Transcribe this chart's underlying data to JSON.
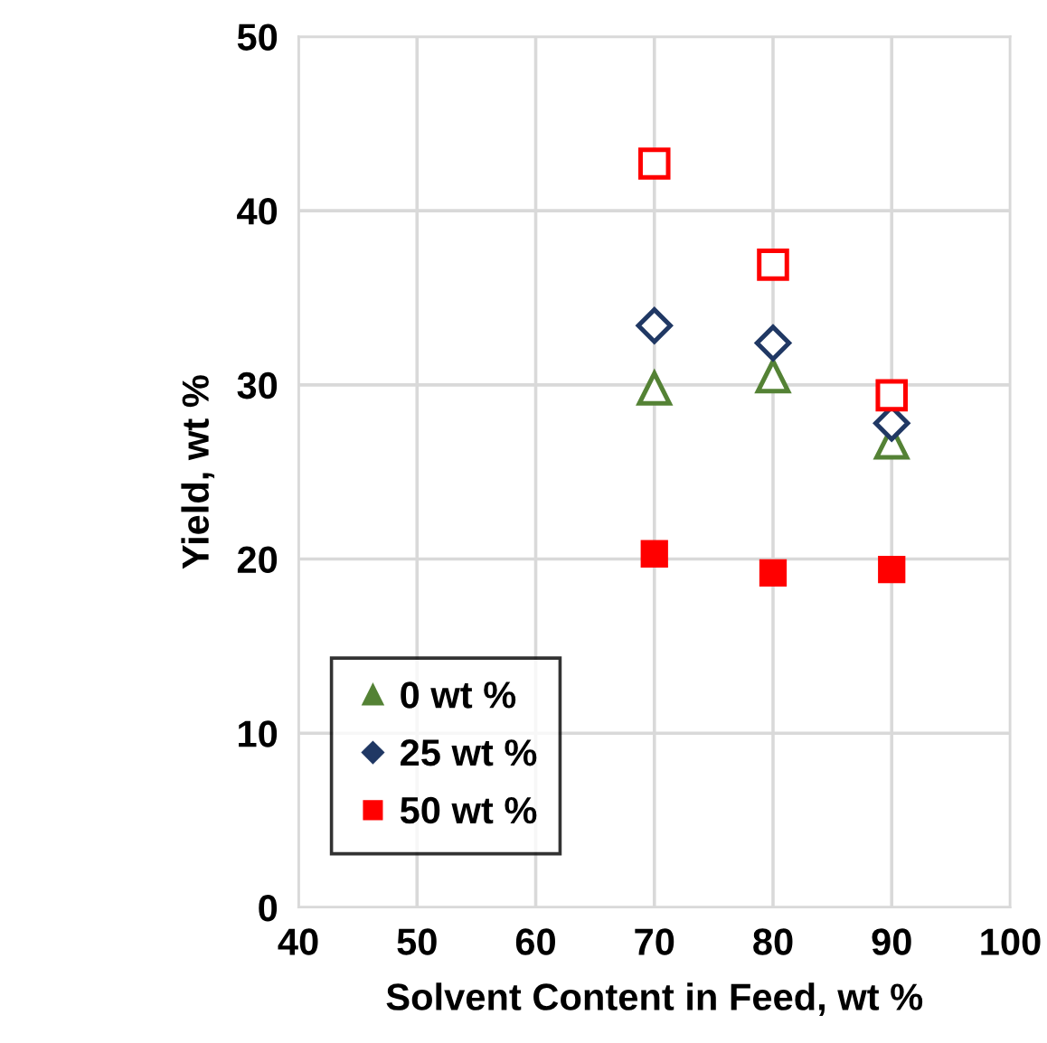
{
  "chart_data": {
    "type": "scatter",
    "xlabel": "Solvent Content in Feed, wt %",
    "ylabel": "Yield, wt %",
    "x": [
      70,
      80,
      90
    ],
    "series": [
      {
        "name": "0 wt %",
        "color": "#548235",
        "marker": "triangle",
        "values": [
          null,
          null,
          null
        ]
      },
      {
        "name": "25 wt %",
        "color": "#203864",
        "marker": "diamond",
        "values": [
          null,
          null,
          null
        ]
      },
      {
        "name": "50 wt %",
        "color": "#ff0000",
        "marker": "square",
        "values": [
          20.3,
          19.2,
          19.4
        ]
      },
      {
        "color": "#548235",
        "marker": "triangle",
        "values": [
          29.8,
          30.5,
          26.7
        ]
      },
      {
        "color": "#203864",
        "marker": "diamond",
        "values": [
          33.4,
          32.4,
          27.8
        ]
      },
      {
        "color": "#ff0000",
        "marker": "square",
        "values": [
          42.7,
          36.9,
          29.4
        ]
      }
    ],
    "xlim": [
      40,
      100
    ],
    "xticks": [
      40,
      50,
      60,
      70,
      80,
      90,
      100
    ],
    "ylim": [
      0,
      50
    ],
    "yticks": [
      0,
      10,
      20,
      30,
      40,
      50
    ],
    "grid": true,
    "legend": "bottom left"
  }
}
